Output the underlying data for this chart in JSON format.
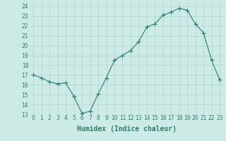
{
  "x": [
    0,
    1,
    2,
    3,
    4,
    5,
    6,
    7,
    8,
    9,
    10,
    11,
    12,
    13,
    14,
    15,
    16,
    17,
    18,
    19,
    20,
    21,
    22,
    23
  ],
  "y": [
    17.0,
    16.7,
    16.3,
    16.1,
    16.2,
    14.8,
    13.1,
    13.3,
    15.1,
    16.7,
    18.5,
    19.0,
    19.5,
    20.4,
    21.9,
    22.2,
    23.1,
    23.4,
    23.8,
    23.6,
    22.2,
    21.3,
    18.5,
    16.5
  ],
  "xlabel": "Humidex (Indice chaleur)",
  "ylim": [
    13,
    24.5
  ],
  "yticks": [
    13,
    14,
    15,
    16,
    17,
    18,
    19,
    20,
    21,
    22,
    23,
    24
  ],
  "xticks": [
    0,
    1,
    2,
    3,
    4,
    5,
    6,
    7,
    8,
    9,
    10,
    11,
    12,
    13,
    14,
    15,
    16,
    17,
    18,
    19,
    20,
    21,
    22,
    23
  ],
  "line_color": "#2e7d6e",
  "marker_color": "#2e7d6e",
  "bg_color": "#cceae6",
  "grid_color": "#aed4ce",
  "tick_color": "#2e7d6e",
  "label_color": "#2e7d6e",
  "xlabel_fontsize": 7,
  "tick_fontsize": 5.5,
  "marker_size": 4,
  "linewidth": 0.8
}
